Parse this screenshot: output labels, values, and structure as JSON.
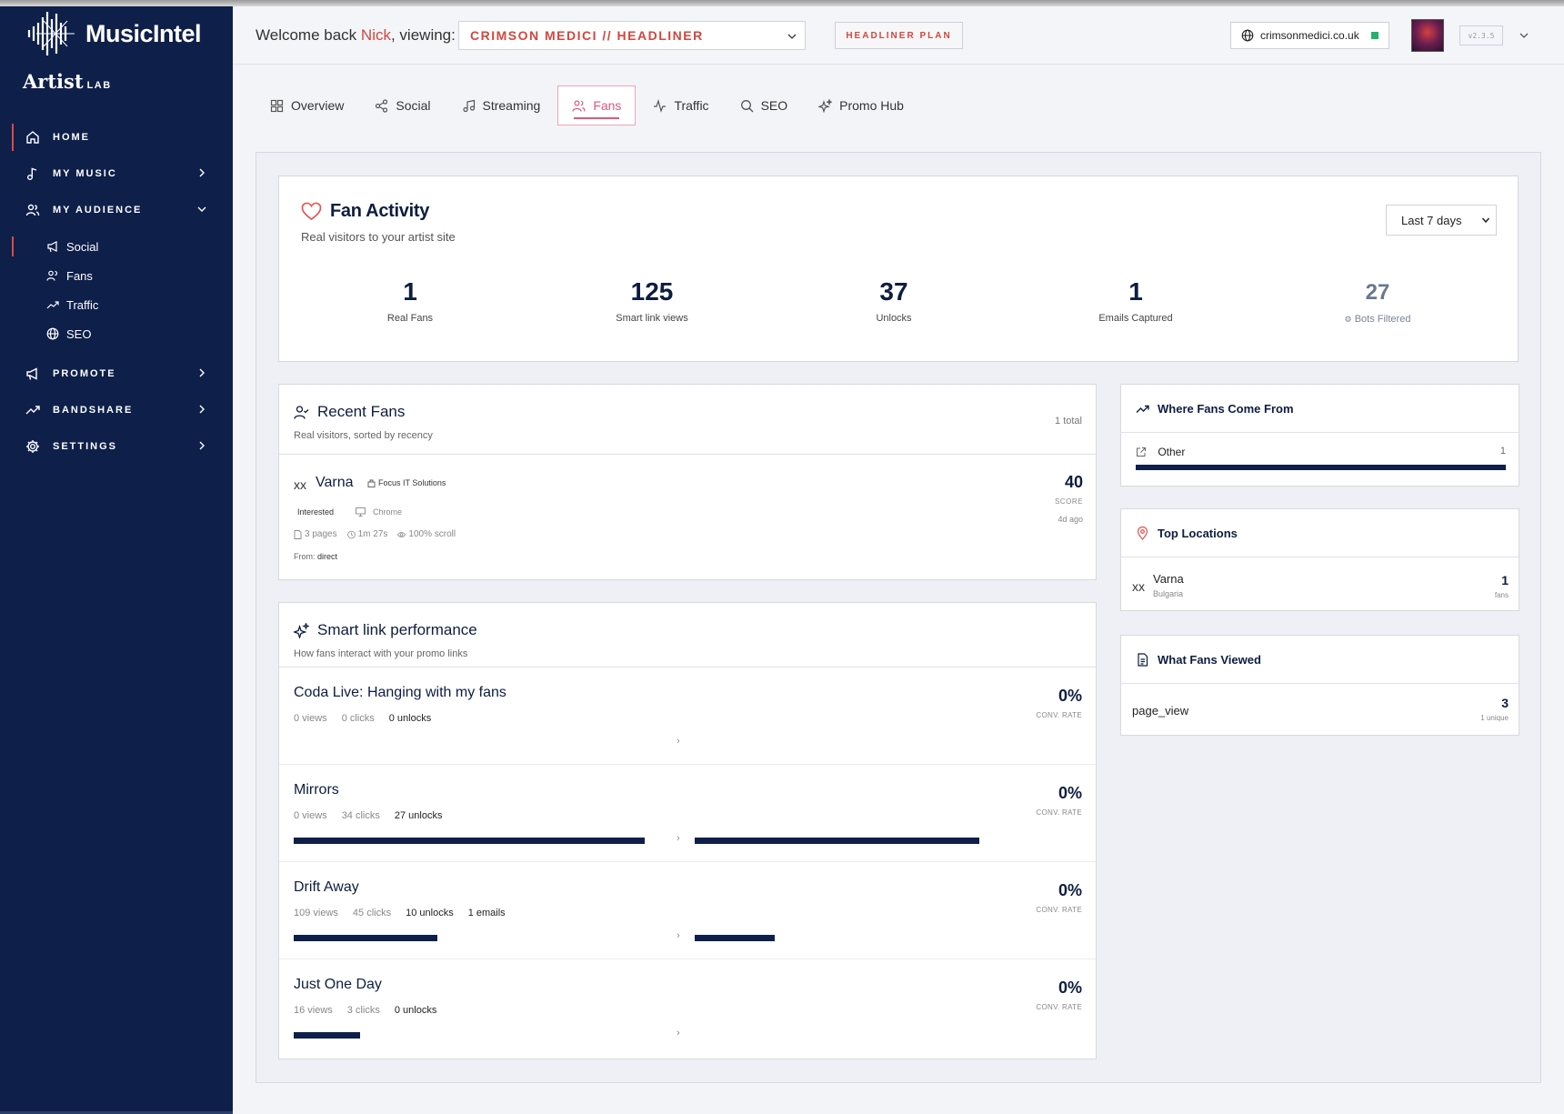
{
  "brand": {
    "name": "MusicIntel",
    "product": "Artist",
    "product_suffix": "LAB"
  },
  "sidebar": {
    "items": [
      {
        "label": "HOME"
      },
      {
        "label": "MY MUSIC"
      },
      {
        "label": "MY AUDIENCE"
      },
      {
        "label": "PROMOTE"
      },
      {
        "label": "BANDSHARE"
      },
      {
        "label": "SETTINGS"
      }
    ],
    "audience_sub": [
      {
        "label": "Social"
      },
      {
        "label": "Fans"
      },
      {
        "label": "Traffic"
      },
      {
        "label": "SEO"
      }
    ]
  },
  "header": {
    "welcome_prefix": "Welcome back",
    "user_name": "Nick",
    "welcome_suffix": ", viewing:",
    "artist_selected": "CRIMSON MEDICI // HEADLINER",
    "plan": "HEADLINER PLAN",
    "domain": "crimsonmedici.co.uk",
    "version": "v2.3.5"
  },
  "tabs": [
    {
      "label": "Overview"
    },
    {
      "label": "Social"
    },
    {
      "label": "Streaming"
    },
    {
      "label": "Fans",
      "active": true
    },
    {
      "label": "Traffic"
    },
    {
      "label": "SEO"
    },
    {
      "label": "Promo Hub"
    }
  ],
  "fan_activity": {
    "title": "Fan Activity",
    "subtitle": "Real visitors to your artist site",
    "range": "Last 7 days",
    "stats": [
      {
        "value": "1",
        "label": "Real Fans"
      },
      {
        "value": "125",
        "label": "Smart link views"
      },
      {
        "value": "37",
        "label": "Unlocks"
      },
      {
        "value": "1",
        "label": "Emails Captured"
      },
      {
        "value": "27",
        "label": "Bots Filtered"
      }
    ]
  },
  "recent_fans": {
    "title": "Recent Fans",
    "subtitle": "Real visitors, sorted by recency",
    "total": "1 total",
    "fans": [
      {
        "flag": "XX",
        "city": "Varna",
        "org": "Focus IT Solutions",
        "status": "Interested",
        "browser": "Chrome",
        "pages": "3 pages",
        "time": "1m 27s",
        "scroll": "100% scroll",
        "from_label": "From:",
        "from": "direct",
        "score": "40",
        "score_label": "SCORE",
        "ago": "4d ago"
      }
    ]
  },
  "smart_links": {
    "title": "Smart link performance",
    "subtitle": "How fans interact with your promo links",
    "conv_label": "CONV. RATE",
    "links": [
      {
        "name": "Coda Live: Hanging with my fans",
        "views": "0 views",
        "clicks": "0 clicks",
        "unlocks": "0 unlocks",
        "emails": "",
        "conv": "0%",
        "click_frac": 0.0,
        "unlock_frac": 0.0
      },
      {
        "name": "Mirrors",
        "views": "0 views",
        "clicks": "34 clicks",
        "unlocks": "27 unlocks",
        "emails": "",
        "conv": "0%",
        "click_frac": 1.0,
        "unlock_frac": 1.0
      },
      {
        "name": "Drift Away",
        "views": "109 views",
        "clicks": "45 clicks",
        "unlocks": "10 unlocks",
        "emails": "1 emails",
        "conv": "0%",
        "click_frac": 0.41,
        "unlock_frac": 0.28
      },
      {
        "name": "Just One Day",
        "views": "16 views",
        "clicks": "3 clicks",
        "unlocks": "0 unlocks",
        "emails": "",
        "conv": "0%",
        "click_frac": 0.19,
        "unlock_frac": 0.0
      }
    ]
  },
  "where_from": {
    "title": "Where Fans Come From",
    "source": "Other",
    "count": "1",
    "fill": 1.0
  },
  "top_locations": {
    "title": "Top Locations",
    "flag": "XX",
    "city": "Varna",
    "country": "Bulgaria",
    "count": "1",
    "count_label": "fans"
  },
  "what_viewed": {
    "title": "What Fans Viewed",
    "event": "page_view",
    "count": "3",
    "count_label": "1 unique"
  },
  "colors": {
    "sidebar": "#0e1f4a",
    "accent": "#d1473f",
    "tab_active": "#e0587a",
    "status_ok": "#21b36b"
  }
}
